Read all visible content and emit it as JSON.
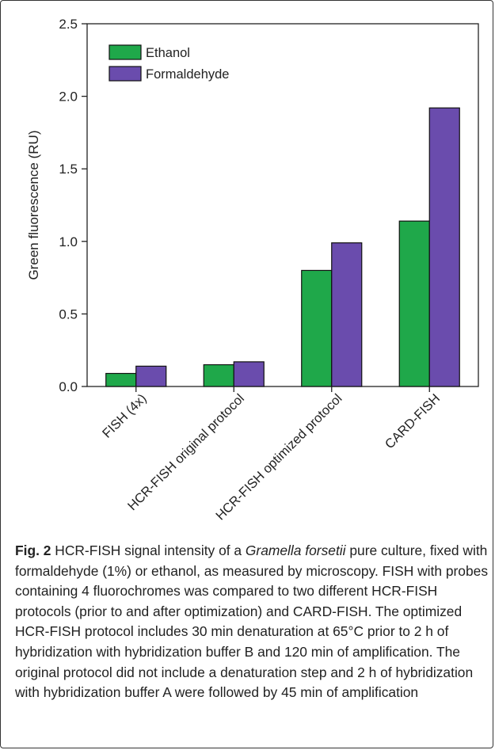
{
  "chart_data": {
    "type": "bar",
    "categories": [
      "FISH (4x)",
      "HCR-FISH original protocol",
      "HCR-FISH optimized protocol",
      "CARD-FISH"
    ],
    "series": [
      {
        "name": "Ethanol",
        "values": [
          0.09,
          0.15,
          0.8,
          1.14
        ]
      },
      {
        "name": "Formaldehyde",
        "values": [
          0.14,
          0.17,
          0.99,
          1.92
        ]
      }
    ],
    "title": "",
    "xlabel": "",
    "ylabel": "Green fluorescence (RU)",
    "ylim": [
      0,
      2.5
    ],
    "yticks": [
      "0.0",
      "0.5",
      "1.0",
      "1.5",
      "2.0",
      "2.5"
    ],
    "grid": false,
    "legend_position": "top-left",
    "colors": {
      "Ethanol": "#1fa84a",
      "Formaldehyde": "#6a4cad"
    }
  },
  "caption": {
    "label": "Fig. 2",
    "text_before_italic": " HCR-FISH signal intensity of a ",
    "italic": "Gramella forsetii",
    "text_after_italic": " pure culture, fixed with formaldehyde (1%) or ethanol, as measured by microscopy. FISH with probes containing 4 fluorochromes was compared to two different HCR-FISH protocols (prior to and after optimization) and CARD-FISH. The optimized HCR-FISH protocol includes 30 min denaturation at 65°C prior to 2 h of hybridization with hybridization buffer B and 120 min of amplification. The original protocol did not include a denaturation step and 2 h of hybridization with hybridization buffer A were followed by 45 min of amplification"
  }
}
